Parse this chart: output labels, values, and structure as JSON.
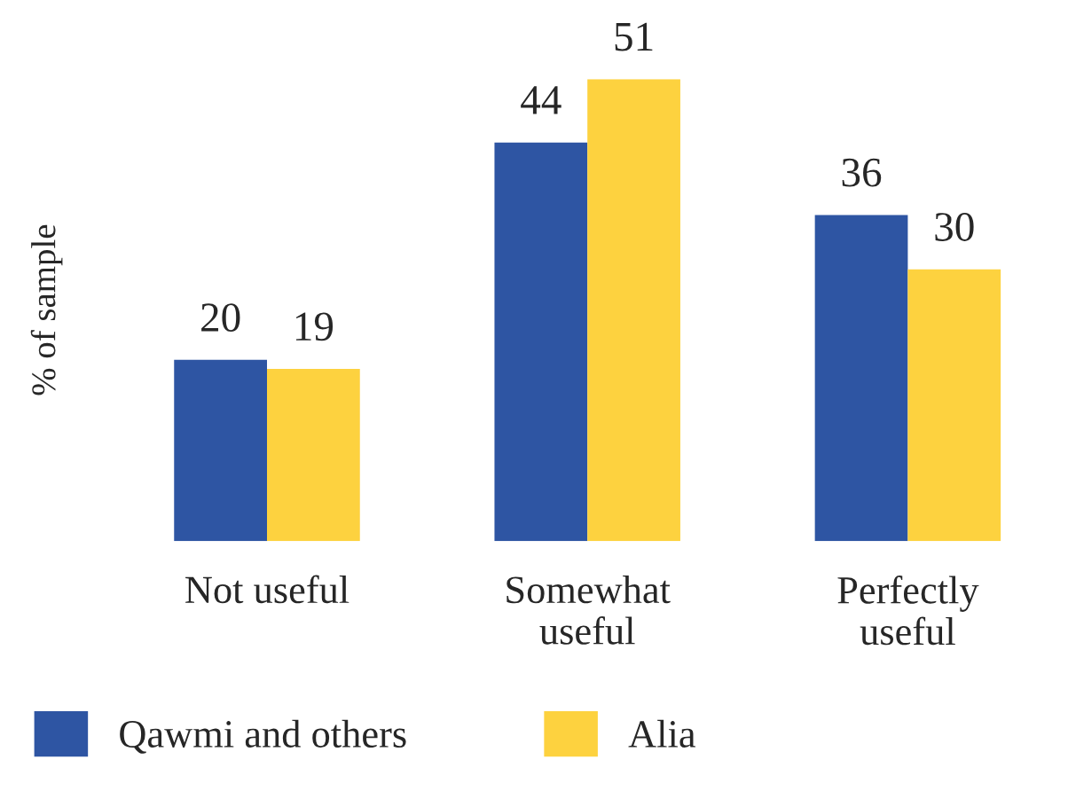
{
  "chart_data": {
    "type": "bar",
    "ylabel": "% of sample",
    "categories": [
      "Not useful",
      "Somewhat\nuseful",
      "Perfectly\nuseful"
    ],
    "series": [
      {
        "name": "Qawmi and others",
        "color": "#2e55a3",
        "values": [
          20,
          44,
          36
        ]
      },
      {
        "name": "Alia",
        "color": "#fdd23f",
        "values": [
          19,
          51,
          30
        ]
      }
    ],
    "data_labels": true,
    "legend": "bottom",
    "grid": false
  }
}
